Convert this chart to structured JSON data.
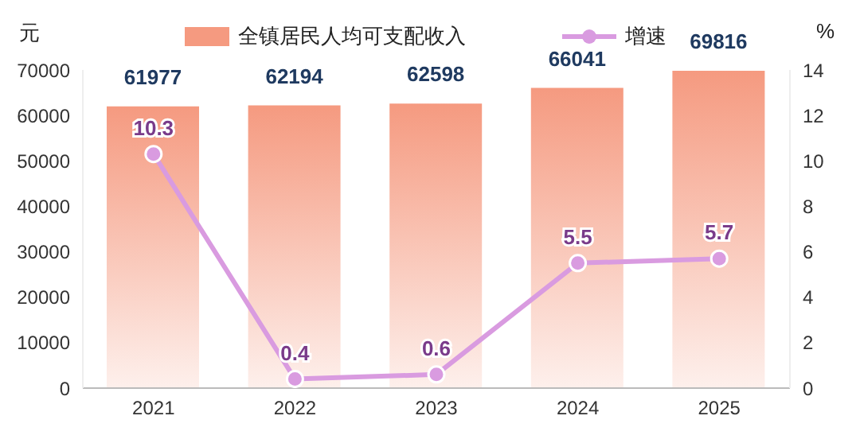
{
  "chart_data": {
    "type": "bar",
    "categories": [
      "2021",
      "2022",
      "2023",
      "2024",
      "2025"
    ],
    "ylabel": "元",
    "y2label": "%",
    "series": [
      {
        "name": "全镇居民人均可支配收入",
        "color": "#f59a80",
        "values": [
          61977,
          62194,
          62598,
          66041,
          69816
        ]
      },
      {
        "name": "增速",
        "type": "line",
        "axis": "y2",
        "color": "#d99be0",
        "values": [
          10.3,
          0.4,
          0.6,
          5.5,
          5.7
        ]
      }
    ],
    "ylim": [
      0,
      70000
    ],
    "yticks": [
      0,
      10000,
      20000,
      30000,
      40000,
      50000,
      60000,
      70000
    ],
    "y2lim": [
      0,
      14
    ],
    "y2ticks": [
      0,
      2,
      4,
      6,
      8,
      10,
      12,
      14
    ],
    "data_labels": true,
    "legend": "top",
    "grid": false,
    "marker": "circle",
    "line_style": "solid"
  }
}
